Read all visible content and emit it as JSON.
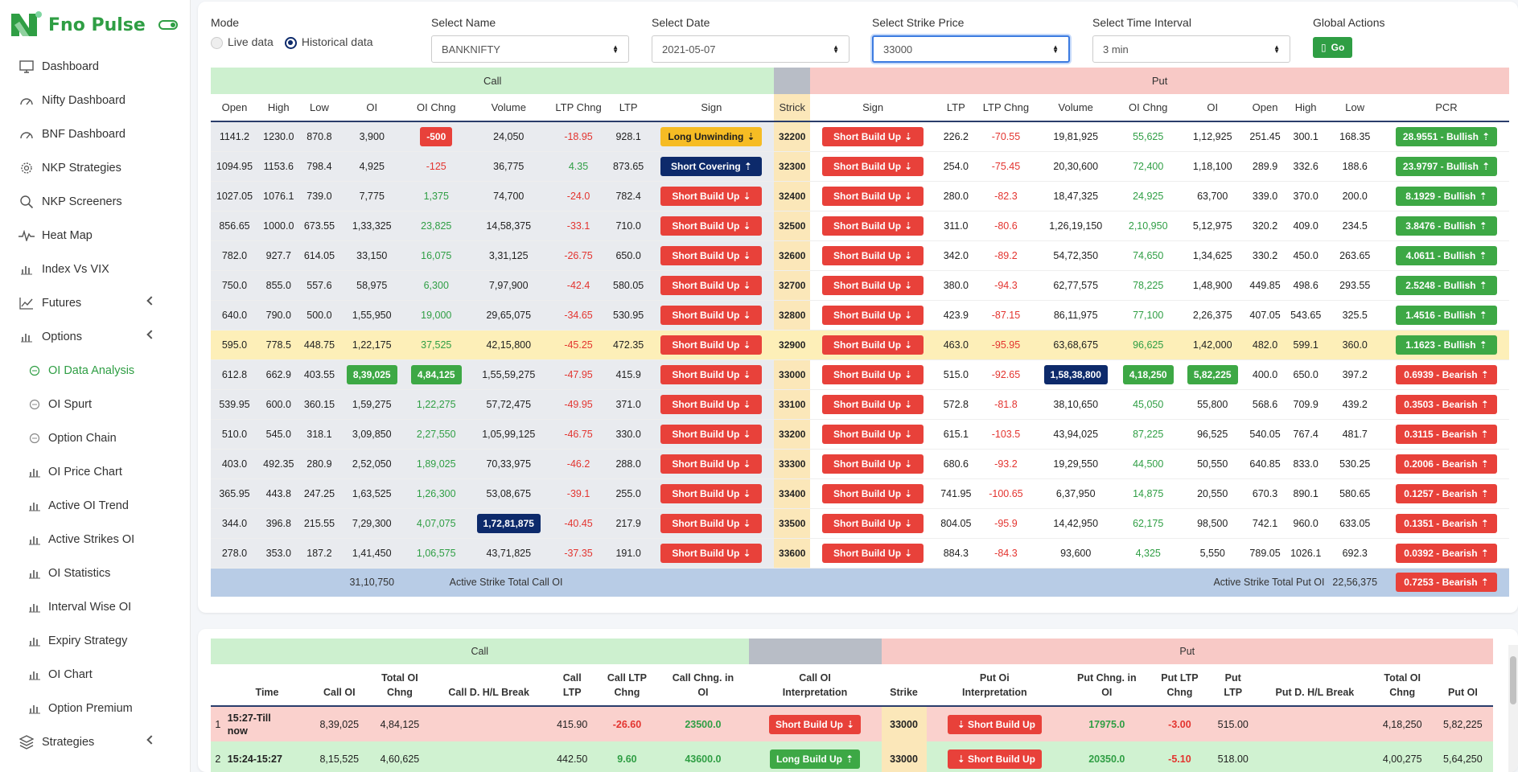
{
  "app": {
    "title": "Fno Pulse"
  },
  "sidebar": {
    "items": [
      {
        "label": "Dashboard",
        "icon": "monitor-icon",
        "type": "main"
      },
      {
        "label": "Nifty Dashboard",
        "icon": "gauge-icon",
        "type": "main"
      },
      {
        "label": "BNF Dashboard",
        "icon": "gauge-icon",
        "type": "main"
      },
      {
        "label": "NKP Strategies",
        "icon": "gear-icon",
        "type": "main"
      },
      {
        "label": "NKP Screeners",
        "icon": "search-icon",
        "type": "main"
      },
      {
        "label": "Heat Map",
        "icon": "pulse-icon",
        "type": "main"
      },
      {
        "label": "Index Vs VIX",
        "icon": "bar-chart-icon",
        "type": "main"
      },
      {
        "label": "Futures",
        "icon": "line-chart-icon",
        "type": "main",
        "chevron": true
      },
      {
        "label": "Options",
        "icon": "bar-chart-icon",
        "type": "main",
        "chevron": true
      },
      {
        "label": "OI Data Analysis",
        "icon": "circle-icon",
        "type": "sub",
        "active": true
      },
      {
        "label": "OI Spurt",
        "icon": "circle-icon",
        "type": "sub"
      },
      {
        "label": "Option Chain",
        "icon": "circle-icon",
        "type": "sub"
      },
      {
        "label": "OI Price Chart",
        "icon": "bar-chart-icon",
        "type": "sub"
      },
      {
        "label": "Active OI Trend",
        "icon": "bar-chart-icon",
        "type": "sub"
      },
      {
        "label": "Active Strikes OI",
        "icon": "bar-chart-icon",
        "type": "sub"
      },
      {
        "label": "OI Statistics",
        "icon": "bar-chart-icon",
        "type": "sub"
      },
      {
        "label": "Interval Wise OI",
        "icon": "bar-chart-icon",
        "type": "sub"
      },
      {
        "label": "Expiry Strategy",
        "icon": "bar-chart-icon",
        "type": "sub"
      },
      {
        "label": "OI Chart",
        "icon": "bar-chart-icon",
        "type": "sub"
      },
      {
        "label": "Option Premium",
        "icon": "bar-chart-icon",
        "type": "sub"
      },
      {
        "label": "Strategies",
        "icon": "strategy-icon",
        "type": "main",
        "chevron": true
      }
    ]
  },
  "filters": {
    "mode_label": "Mode",
    "live_label": "Live data",
    "historical_label": "Historical data",
    "name_label": "Select Name",
    "name_value": "BANKNIFTY",
    "date_label": "Select Date",
    "date_value": "2021-05-07",
    "strike_label": "Select Strike Price",
    "strike_value": "33000",
    "interval_label": "Select Time Interval",
    "interval_value": "3 min",
    "actions_label": "Global Actions",
    "go_label": "Go"
  },
  "oi_table": {
    "call_label": "Call",
    "put_label": "Put",
    "headers": [
      "Open",
      "High",
      "Low",
      "OI",
      "OI Chng",
      "Volume",
      "LTP Chng",
      "LTP",
      "Sign",
      "Strick",
      "Sign",
      "LTP",
      "LTP Chng",
      "Volume",
      "OI Chng",
      "OI",
      "Open",
      "High",
      "Low",
      "PCR"
    ],
    "rows": [
      {
        "strike": "32200",
        "c": [
          "1141.2",
          "1230.0",
          "870.8",
          "3,900",
          "-500",
          "24,050",
          "-18.95",
          "928.1"
        ],
        "csign": "Long Unwinding",
        "csign_color": "yellow",
        "csign_arrow": "down",
        "p": [
          "226.2",
          "-70.55",
          "19,81,925",
          "55,625",
          "1,12,925",
          "251.45",
          "300.1",
          "168.35"
        ],
        "psign": "Short Build Up",
        "psign_color": "red",
        "pcr": "28.9551 - Bullish",
        "pcr_color": "green",
        "coi_chng_badge": "red"
      },
      {
        "strike": "32300",
        "c": [
          "1094.95",
          "1153.6",
          "798.4",
          "4,925",
          "-125",
          "36,775",
          "4.35",
          "873.65"
        ],
        "csign": "Short Covering",
        "csign_color": "navy",
        "csign_arrow": "up",
        "p": [
          "254.0",
          "-75.45",
          "20,30,600",
          "72,400",
          "1,18,100",
          "289.9",
          "332.6",
          "188.6"
        ],
        "psign": "Short Build Up",
        "psign_color": "red",
        "pcr": "23.9797 - Bullish",
        "pcr_color": "green"
      },
      {
        "strike": "32400",
        "c": [
          "1027.05",
          "1076.1",
          "739.0",
          "7,775",
          "1,375",
          "74,700",
          "-24.0",
          "782.4"
        ],
        "csign": "Short Build Up",
        "csign_color": "red",
        "csign_arrow": "down",
        "p": [
          "280.0",
          "-82.3",
          "18,47,325",
          "24,925",
          "63,700",
          "339.0",
          "370.0",
          "200.0"
        ],
        "psign": "Short Build Up",
        "psign_color": "red",
        "pcr": "8.1929 - Bullish",
        "pcr_color": "green"
      },
      {
        "strike": "32500",
        "c": [
          "856.65",
          "1000.0",
          "673.55",
          "1,33,325",
          "23,825",
          "14,58,375",
          "-33.1",
          "710.0"
        ],
        "csign": "Short Build Up",
        "csign_color": "red",
        "csign_arrow": "down",
        "p": [
          "311.0",
          "-80.6",
          "1,26,19,150",
          "2,10,950",
          "5,12,975",
          "320.2",
          "409.0",
          "234.5"
        ],
        "psign": "Short Build Up",
        "psign_color": "red",
        "pcr": "3.8476 - Bullish",
        "pcr_color": "green"
      },
      {
        "strike": "32600",
        "c": [
          "782.0",
          "927.7",
          "614.05",
          "33,150",
          "16,075",
          "3,31,125",
          "-26.75",
          "650.0"
        ],
        "csign": "Short Build Up",
        "csign_color": "red",
        "csign_arrow": "down",
        "p": [
          "342.0",
          "-89.2",
          "54,72,350",
          "74,650",
          "1,34,625",
          "330.2",
          "450.0",
          "263.65"
        ],
        "psign": "Short Build Up",
        "psign_color": "red",
        "pcr": "4.0611 - Bullish",
        "pcr_color": "green"
      },
      {
        "strike": "32700",
        "c": [
          "750.0",
          "855.0",
          "557.6",
          "58,975",
          "6,300",
          "7,97,900",
          "-42.4",
          "580.05"
        ],
        "csign": "Short Build Up",
        "csign_color": "red",
        "csign_arrow": "down",
        "p": [
          "380.0",
          "-94.3",
          "62,77,575",
          "78,225",
          "1,48,900",
          "449.85",
          "498.6",
          "293.55"
        ],
        "psign": "Short Build Up",
        "psign_color": "red",
        "pcr": "2.5248 - Bullish",
        "pcr_color": "green"
      },
      {
        "strike": "32800",
        "c": [
          "640.0",
          "790.0",
          "500.0",
          "1,55,950",
          "19,000",
          "29,65,075",
          "-34.65",
          "530.95"
        ],
        "csign": "Short Build Up",
        "csign_color": "red",
        "csign_arrow": "down",
        "p": [
          "423.9",
          "-87.15",
          "86,11,975",
          "77,100",
          "2,26,375",
          "407.05",
          "543.65",
          "325.5"
        ],
        "psign": "Short Build Up",
        "psign_color": "red",
        "pcr": "1.4516 - Bullish",
        "pcr_color": "green"
      },
      {
        "strike": "32900",
        "c": [
          "595.0",
          "778.5",
          "448.75",
          "1,22,175",
          "37,525",
          "42,15,800",
          "-45.25",
          "472.35"
        ],
        "csign": "Short Build Up",
        "csign_color": "red",
        "csign_arrow": "down",
        "p": [
          "463.0",
          "-95.95",
          "63,68,675",
          "96,625",
          "1,42,000",
          "482.0",
          "599.1",
          "360.0"
        ],
        "psign": "Short Build Up",
        "psign_color": "red",
        "pcr": "1.1623 - Bullish",
        "pcr_color": "green",
        "highlight": true
      },
      {
        "strike": "33000",
        "c": [
          "612.8",
          "662.9",
          "403.55",
          "8,39,025",
          "4,84,125",
          "1,55,59,275",
          "-47.95",
          "415.9"
        ],
        "csign": "Short Build Up",
        "csign_color": "red",
        "csign_arrow": "down",
        "p": [
          "515.0",
          "-92.65",
          "1,58,38,800",
          "4,18,250",
          "5,82,225",
          "400.0",
          "650.0",
          "397.2"
        ],
        "psign": "Short Build Up",
        "psign_color": "red",
        "pcr": "0.6939 - Bearish",
        "pcr_color": "red",
        "coi_badge": "green",
        "coi_chng_badge": "green",
        "pvol_badge": "navy",
        "poi_chng_badge": "green",
        "poi_badge": "green"
      },
      {
        "strike": "33100",
        "c": [
          "539.95",
          "600.0",
          "360.15",
          "1,59,275",
          "1,22,275",
          "57,72,475",
          "-49.95",
          "371.0"
        ],
        "csign": "Short Build Up",
        "csign_color": "red",
        "csign_arrow": "down",
        "p": [
          "572.8",
          "-81.8",
          "38,10,650",
          "45,050",
          "55,800",
          "568.6",
          "709.9",
          "439.2"
        ],
        "psign": "Short Build Up",
        "psign_color": "red",
        "pcr": "0.3503 - Bearish",
        "pcr_color": "red"
      },
      {
        "strike": "33200",
        "c": [
          "510.0",
          "545.0",
          "318.1",
          "3,09,850",
          "2,27,550",
          "1,05,99,125",
          "-46.75",
          "330.0"
        ],
        "csign": "Short Build Up",
        "csign_color": "red",
        "csign_arrow": "down",
        "p": [
          "615.1",
          "-103.5",
          "43,94,025",
          "87,225",
          "96,525",
          "540.05",
          "767.4",
          "481.7"
        ],
        "psign": "Short Build Up",
        "psign_color": "red",
        "pcr": "0.3115 - Bearish",
        "pcr_color": "red"
      },
      {
        "strike": "33300",
        "c": [
          "403.0",
          "492.35",
          "280.9",
          "2,52,050",
          "1,89,025",
          "70,33,975",
          "-46.2",
          "288.0"
        ],
        "csign": "Short Build Up",
        "csign_color": "red",
        "csign_arrow": "down",
        "p": [
          "680.6",
          "-93.2",
          "19,29,550",
          "44,500",
          "50,550",
          "640.85",
          "833.0",
          "530.25"
        ],
        "psign": "Short Build Up",
        "psign_color": "red",
        "pcr": "0.2006 - Bearish",
        "pcr_color": "red"
      },
      {
        "strike": "33400",
        "c": [
          "365.95",
          "443.8",
          "247.25",
          "1,63,525",
          "1,26,300",
          "53,08,675",
          "-39.1",
          "255.0"
        ],
        "csign": "Short Build Up",
        "csign_color": "red",
        "csign_arrow": "down",
        "p": [
          "741.95",
          "-100.65",
          "6,37,950",
          "14,875",
          "20,550",
          "670.3",
          "890.1",
          "580.65"
        ],
        "psign": "Short Build Up",
        "psign_color": "red",
        "pcr": "0.1257 - Bearish",
        "pcr_color": "red"
      },
      {
        "strike": "33500",
        "c": [
          "344.0",
          "396.8",
          "215.55",
          "7,29,300",
          "4,07,075",
          "1,72,81,875",
          "-40.45",
          "217.9"
        ],
        "csign": "Short Build Up",
        "csign_color": "red",
        "csign_arrow": "down",
        "p": [
          "804.05",
          "-95.9",
          "14,42,950",
          "62,175",
          "98,500",
          "742.1",
          "960.0",
          "633.05"
        ],
        "psign": "Short Build Up",
        "psign_color": "red",
        "pcr": "0.1351 - Bearish",
        "pcr_color": "red",
        "cvol_badge": "navy"
      },
      {
        "strike": "33600",
        "c": [
          "278.0",
          "353.0",
          "187.2",
          "1,41,450",
          "1,06,575",
          "43,71,825",
          "-37.35",
          "191.0"
        ],
        "csign": "Short Build Up",
        "csign_color": "red",
        "csign_arrow": "down",
        "p": [
          "884.3",
          "-84.3",
          "93,600",
          "4,325",
          "5,550",
          "789.05",
          "1026.1",
          "692.3"
        ],
        "psign": "Short Build Up",
        "psign_color": "red",
        "pcr": "0.0392 - Bearish",
        "pcr_color": "red"
      }
    ],
    "footer": {
      "call_total": "31,10,750",
      "call_label": "Active Strike Total Call OI",
      "put_label": "Active Strike Total Put OI",
      "put_total": "22,56,375",
      "pcr": "0.7253 - Bearish"
    }
  },
  "interval_table": {
    "call_label": "Call",
    "put_label": "Put",
    "headers": [
      {
        "l1": "",
        "l2": "Time"
      },
      {
        "l1": "",
        "l2": "Call OI"
      },
      {
        "l1": "Total OI",
        "l2": "Chng"
      },
      {
        "l1": "",
        "l2": "Call D. H/L Break"
      },
      {
        "l1": "Call",
        "l2": "LTP"
      },
      {
        "l1": "Call LTP",
        "l2": "Chng"
      },
      {
        "l1": "Call Chng. in",
        "l2": "OI"
      },
      {
        "l1": "Call OI",
        "l2": "Interpretation"
      },
      {
        "l1": "",
        "l2": "Strike"
      },
      {
        "l1": "Put Oi",
        "l2": "Interpretation"
      },
      {
        "l1": "Put Chng. in",
        "l2": "OI"
      },
      {
        "l1": "Put LTP",
        "l2": "Chng"
      },
      {
        "l1": "Put",
        "l2": "LTP"
      },
      {
        "l1": "",
        "l2": "Put D. H/L Break"
      },
      {
        "l1": "Total OI",
        "l2": "Chng"
      },
      {
        "l1": "",
        "l2": "Put OI"
      }
    ],
    "rows": [
      {
        "n": "1",
        "time": "15:27-Till now",
        "call_oi": "8,39,025",
        "total_chng": "4,84,125",
        "call_hl": "",
        "call_ltp": "415.90",
        "call_ltp_chng": "-26.60",
        "call_chng_oi": "23500.0",
        "call_interp": "Short Build Up",
        "call_interp_color": "red",
        "strike": "33000",
        "put_interp": "Short Build Up",
        "put_interp_color": "red",
        "put_chng_oi": "17975.0",
        "put_ltp_chng": "-3.00",
        "put_ltp": "515.00",
        "put_hl": "",
        "put_total_chng": "4,18,250",
        "put_oi": "5,82,225",
        "cls": "r1"
      },
      {
        "n": "2",
        "time": "15:24-15:27",
        "call_oi": "8,15,525",
        "total_chng": "4,60,625",
        "call_hl": "",
        "call_ltp": "442.50",
        "call_ltp_chng": "9.60",
        "call_chng_oi": "43600.0",
        "call_interp": "Long Build Up",
        "call_interp_color": "green",
        "strike": "33000",
        "put_interp": "Short Build Up",
        "put_interp_color": "red",
        "put_chng_oi": "20350.0",
        "put_ltp_chng": "-5.10",
        "put_ltp": "518.00",
        "put_hl": "",
        "put_total_chng": "4,00,275",
        "put_oi": "5,64,250",
        "cls": "r2"
      }
    ]
  },
  "colors": {
    "brand": "#2f9e44",
    "navy": "#0d2a6b",
    "red": "#e8413a",
    "green": "#3da845",
    "yellow": "#f6bc24"
  }
}
